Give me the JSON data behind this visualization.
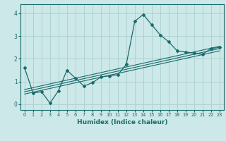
{
  "xlabel": "Humidex (Indice chaleur)",
  "ylabel": "",
  "xlim": [
    -0.5,
    23.5
  ],
  "ylim": [
    -0.25,
    4.4
  ],
  "xticks": [
    0,
    1,
    2,
    3,
    4,
    5,
    6,
    7,
    8,
    9,
    10,
    11,
    12,
    13,
    14,
    15,
    16,
    17,
    18,
    19,
    20,
    21,
    22,
    23
  ],
  "yticks": [
    0,
    1,
    2,
    3,
    4
  ],
  "bg_color": "#cce8e8",
  "grid_color": "#aad0d0",
  "line_color": "#1a6b6b",
  "main_line_x": [
    0,
    1,
    2,
    3,
    4,
    5,
    6,
    7,
    8,
    9,
    10,
    11,
    12,
    13,
    14,
    15,
    16,
    17,
    18,
    19,
    20,
    21,
    22,
    23
  ],
  "main_line_y": [
    1.6,
    0.5,
    0.55,
    0.05,
    0.6,
    1.5,
    1.15,
    0.8,
    0.95,
    1.2,
    1.25,
    1.3,
    1.75,
    3.65,
    3.95,
    3.5,
    3.05,
    2.75,
    2.35,
    2.3,
    2.25,
    2.2,
    2.45,
    2.5
  ],
  "trend1_x": [
    0,
    23
  ],
  "trend1_y": [
    0.55,
    2.45
  ],
  "trend2_x": [
    0,
    23
  ],
  "trend2_y": [
    0.65,
    2.55
  ],
  "trend3_x": [
    0,
    23
  ],
  "trend3_y": [
    0.45,
    2.35
  ]
}
